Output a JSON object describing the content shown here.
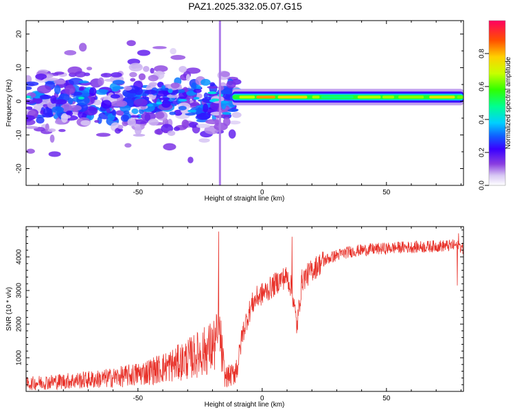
{
  "title": "PAZ1.2025.332.05.07.G15",
  "chart_data": [
    {
      "type": "heatmap",
      "title": "PAZ1.2025.332.05.07.G15",
      "xlabel": "Height of straight line (km)",
      "ylabel": "Frequency (Hz)",
      "xlim": [
        -95,
        81
      ],
      "ylim": [
        -25,
        24
      ],
      "xticks": [
        -50,
        0,
        50
      ],
      "xtick_labels": [
        "-50",
        "0",
        "50"
      ],
      "yticks": [
        -20,
        -10,
        0,
        10,
        20
      ],
      "ytick_labels": [
        "-20",
        "-10",
        "0",
        "10",
        "20"
      ],
      "colorbar": {
        "label": "Normalized spectral amplitude",
        "range": [
          0,
          1
        ],
        "ticks": [
          0,
          0.2,
          0.4,
          0.6,
          0.8
        ],
        "tick_labels": [
          "0.0",
          "0.2",
          "0.4",
          "0.6",
          "0.8"
        ]
      },
      "features": {
        "noisy_region_x": [
          -95,
          -10
        ],
        "noisy_region_freq": [
          -12,
          12
        ],
        "noisy_amplitude": [
          0.05,
          0.35
        ],
        "vertical_spike_x": -17,
        "vertical_spike_freq": [
          -25,
          24
        ],
        "carrier_line_x": [
          -12,
          81
        ],
        "carrier_line_freq": [
          0.5,
          2
        ],
        "carrier_amplitude": [
          0.4,
          1.0
        ]
      }
    },
    {
      "type": "line",
      "xlabel": "Height of straight line (km)",
      "ylabel": "SNR (10 * v/v)",
      "xlim": [
        -95,
        81
      ],
      "ylim": [
        0,
        4900
      ],
      "xticks": [
        -50,
        0,
        50
      ],
      "xtick_labels": [
        "-50",
        "0",
        "50"
      ],
      "yticks": [
        1000,
        2000,
        3000,
        4000
      ],
      "ytick_labels": [
        "1000",
        "2000",
        "3000",
        "4000"
      ],
      "series": [
        {
          "name": "SNR",
          "color": "#e8332b",
          "x": [
            -95,
            -90,
            -85,
            -80,
            -75,
            -70,
            -65,
            -60,
            -55,
            -50,
            -45,
            -40,
            -35,
            -30,
            -25,
            -20,
            -17,
            -15,
            -12,
            -10,
            -8,
            -6,
            -4,
            -2,
            0,
            2,
            4,
            6,
            8,
            10,
            12,
            14,
            16,
            20,
            25,
            30,
            35,
            40,
            45,
            50,
            55,
            60,
            65,
            70,
            75,
            78,
            80,
            81
          ],
          "values": [
            200,
            240,
            260,
            280,
            300,
            320,
            340,
            380,
            420,
            480,
            560,
            650,
            760,
            900,
            1060,
            1240,
            1500,
            400,
            450,
            700,
            1700,
            2200,
            2600,
            2800,
            2900,
            3000,
            3100,
            3250,
            3350,
            3400,
            3050,
            1900,
            3300,
            3600,
            3900,
            4050,
            4150,
            4200,
            4230,
            4250,
            4280,
            4290,
            4300,
            4320,
            4330,
            4350,
            4300,
            4200
          ]
        }
      ],
      "annotations": {
        "spike": {
          "x": -17.5,
          "y": 4750
        },
        "spike2": {
          "x": 12,
          "y": 4600
        },
        "spike3": {
          "x": 79,
          "y": 4700
        },
        "dip": {
          "x": 78.5,
          "y": 3150
        }
      }
    }
  ]
}
